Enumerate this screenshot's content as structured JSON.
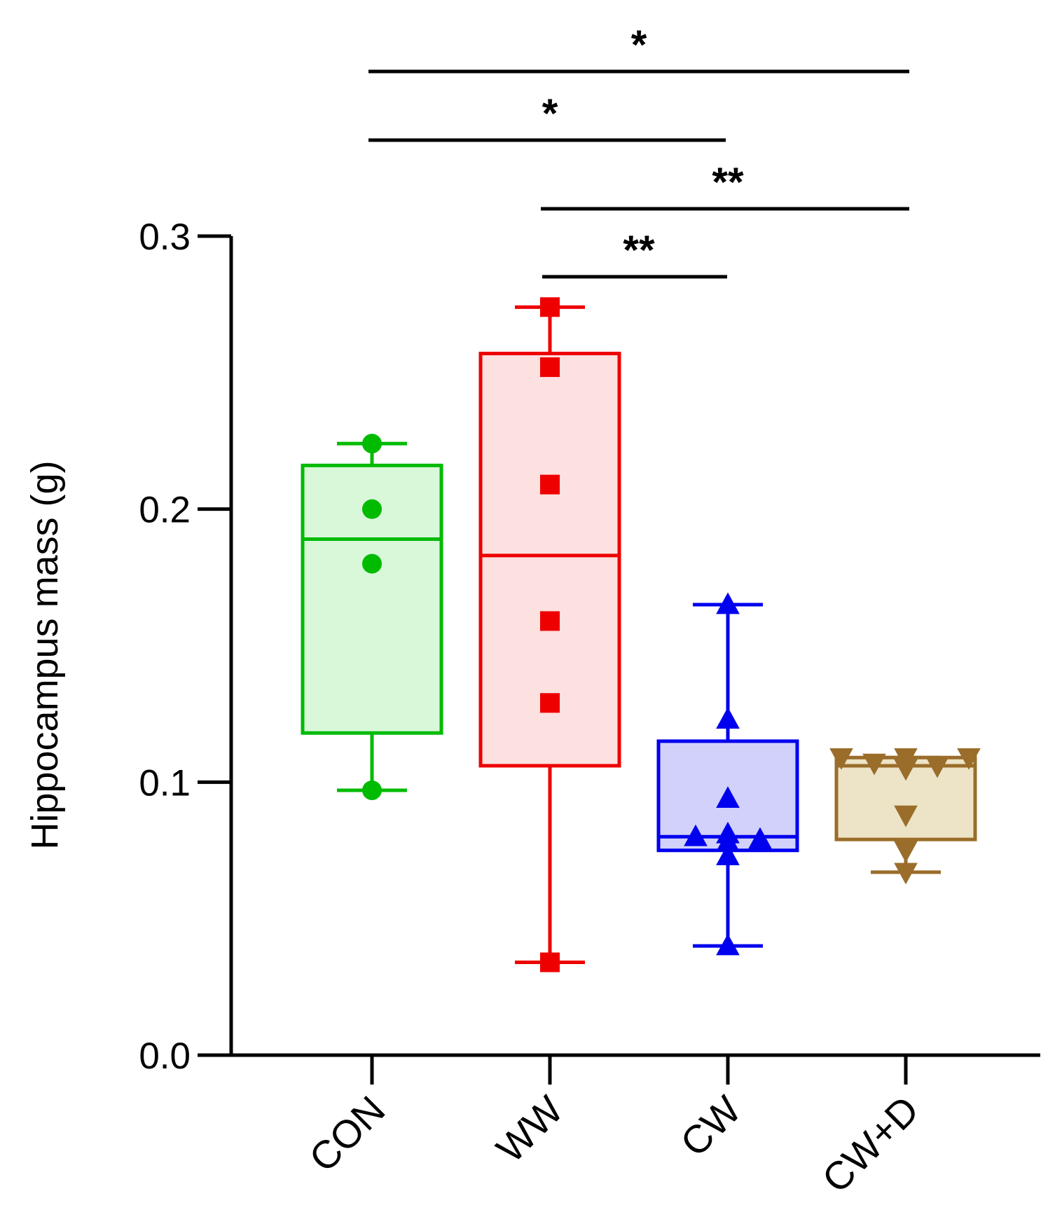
{
  "chart_data": {
    "type": "box",
    "title": "",
    "xlabel": "",
    "ylabel": "Hippocampus mass (g)",
    "ylim": [
      0,
      0.3
    ],
    "yticks": [
      0.0,
      0.1,
      0.2,
      0.3
    ],
    "ytick_labels": [
      "0.0",
      "0.1",
      "0.2",
      "0.3"
    ],
    "grid": false,
    "categories": [
      "CON",
      "WW",
      "CW",
      "CW+D"
    ],
    "groups": [
      {
        "name": "CON",
        "color": "#00bb00",
        "fill": "#d9f7d9",
        "marker": "circle",
        "min": 0.097,
        "q1": 0.118,
        "median": 0.189,
        "q3": 0.216,
        "max": 0.224,
        "points": [
          0.224,
          0.2,
          0.18,
          0.097
        ]
      },
      {
        "name": "WW",
        "color": "#ee0000",
        "fill": "#fde0e0",
        "marker": "square",
        "min": 0.034,
        "q1": 0.106,
        "median": 0.183,
        "q3": 0.257,
        "max": 0.274,
        "points": [
          0.274,
          0.252,
          0.209,
          0.159,
          0.129,
          0.034
        ]
      },
      {
        "name": "CW",
        "color": "#0000ee",
        "fill": "#d1d1fb",
        "marker": "triangle-up",
        "min": 0.04,
        "q1": 0.075,
        "median": 0.08,
        "q3": 0.115,
        "max": 0.165,
        "points": [
          0.165,
          0.123,
          0.094,
          0.081,
          0.08,
          0.079,
          0.078,
          0.073,
          0.04
        ]
      },
      {
        "name": "CW+D",
        "color": "#9a6d2a",
        "fill": "#ede4c7",
        "marker": "triangle-down",
        "min": 0.067,
        "q1": 0.079,
        "median": 0.106,
        "q3": 0.109,
        "max": 0.109,
        "points": [
          0.109,
          0.109,
          0.109,
          0.107,
          0.106,
          0.105,
          0.088,
          0.075,
          0.067
        ]
      }
    ],
    "significance": [
      {
        "from": "CON",
        "to": "CW+D",
        "label": "*"
      },
      {
        "from": "CON",
        "to": "CW",
        "label": "*"
      },
      {
        "from": "WW",
        "to": "CW+D",
        "label": "**"
      },
      {
        "from": "WW",
        "to": "CW",
        "label": "**"
      }
    ]
  }
}
